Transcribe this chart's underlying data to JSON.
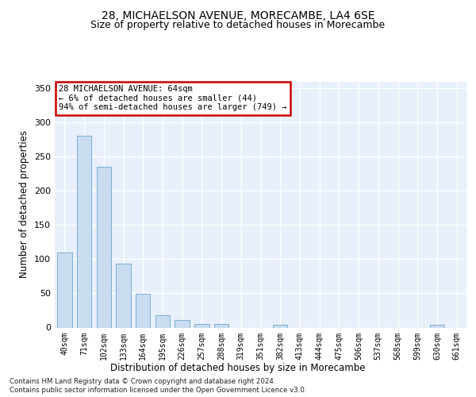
{
  "title_line1": "28, MICHAELSON AVENUE, MORECAMBE, LA4 6SE",
  "title_line2": "Size of property relative to detached houses in Morecambe",
  "xlabel": "Distribution of detached houses by size in Morecambe",
  "ylabel": "Number of detached properties",
  "bar_color": "#c9dcf0",
  "bar_edge_color": "#7bafd4",
  "categories": [
    "40sqm",
    "71sqm",
    "102sqm",
    "133sqm",
    "164sqm",
    "195sqm",
    "226sqm",
    "257sqm",
    "288sqm",
    "319sqm",
    "351sqm",
    "382sqm",
    "413sqm",
    "444sqm",
    "475sqm",
    "506sqm",
    "537sqm",
    "568sqm",
    "599sqm",
    "630sqm",
    "661sqm"
  ],
  "values": [
    110,
    280,
    235,
    94,
    49,
    18,
    11,
    5,
    5,
    0,
    0,
    4,
    0,
    0,
    0,
    0,
    0,
    0,
    0,
    4,
    0
  ],
  "ylim": [
    0,
    360
  ],
  "yticks": [
    0,
    50,
    100,
    150,
    200,
    250,
    300,
    350
  ],
  "annotation_text": "28 MICHAELSON AVENUE: 64sqm\n← 6% of detached houses are smaller (44)\n94% of semi-detached houses are larger (749) →",
  "annotation_box_color": "#ffffff",
  "annotation_edge_color": "#cc0000",
  "footer_line1": "Contains HM Land Registry data © Crown copyright and database right 2024.",
  "footer_line2": "Contains public sector information licensed under the Open Government Licence v3.0.",
  "background_color": "#e8f0fb",
  "grid_color": "#ffffff"
}
